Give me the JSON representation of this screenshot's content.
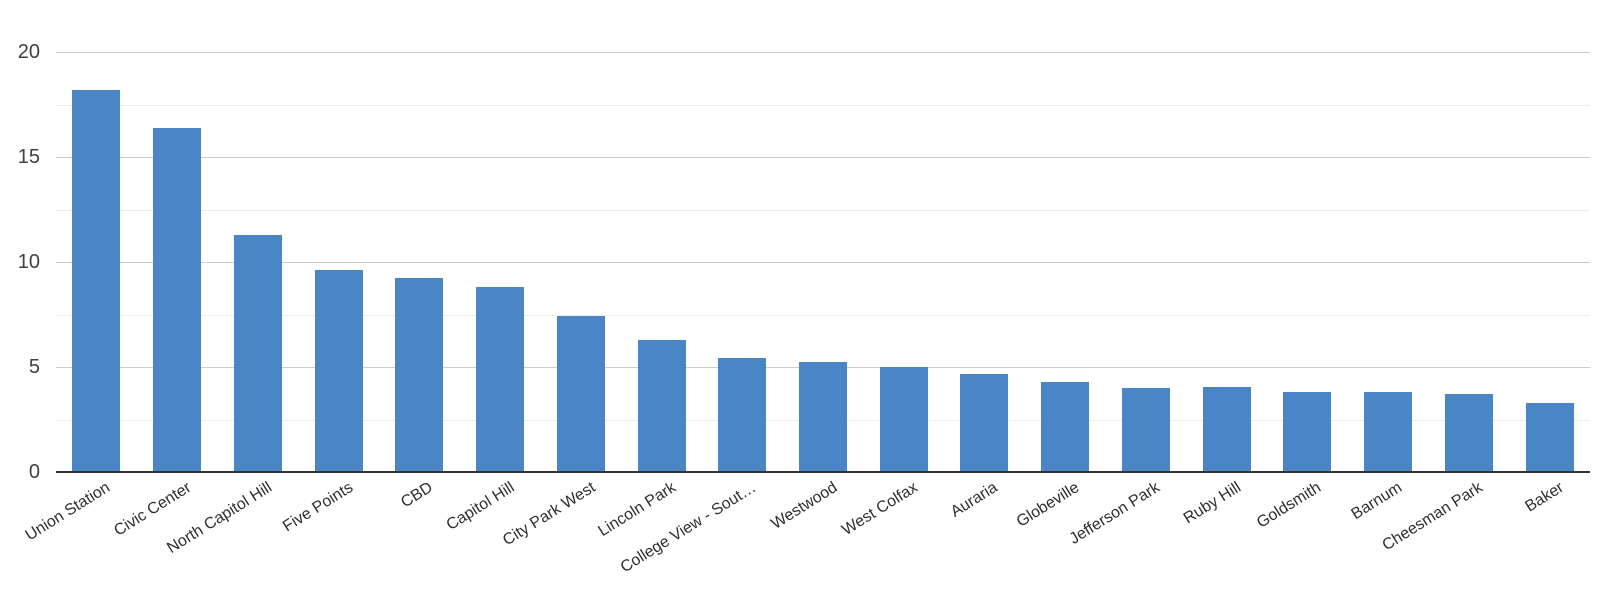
{
  "chart_data": {
    "type": "bar",
    "title": "",
    "xlabel": "",
    "ylabel": "",
    "categories": [
      "Union Station",
      "Civic Center",
      "North Capitol Hill",
      "Five Points",
      "CBD",
      "Capitol Hill",
      "City Park West",
      "Lincoln Park",
      "College View - Sout…",
      "Westwood",
      "West Colfax",
      "Auraria",
      "Globeville",
      "Jefferson Park",
      "Ruby Hill",
      "Goldsmith",
      "Barnum",
      "Cheesman Park",
      "Baker"
    ],
    "values": [
      18.2,
      16.4,
      11.3,
      9.6,
      9.25,
      8.8,
      7.45,
      6.3,
      5.45,
      5.25,
      5.0,
      4.65,
      4.3,
      4.0,
      4.05,
      3.8,
      3.8,
      3.7,
      3.3
    ],
    "ylim": [
      0,
      20
    ],
    "yticks": [
      0,
      5,
      10,
      15,
      20
    ],
    "minor_gridlines": [
      2.5,
      7.5,
      12.5,
      17.5
    ],
    "grid": "on",
    "legend": "none",
    "x_label_rotation_degrees": -32,
    "colors": {
      "bar": "#4a86c6",
      "major_gridline": "#cccccc",
      "minor_gridline": "#ebebeb",
      "baseline": "#333333",
      "ytick_label": "#404040",
      "category_label": "#2e2e2e",
      "background": "#ffffff"
    }
  }
}
